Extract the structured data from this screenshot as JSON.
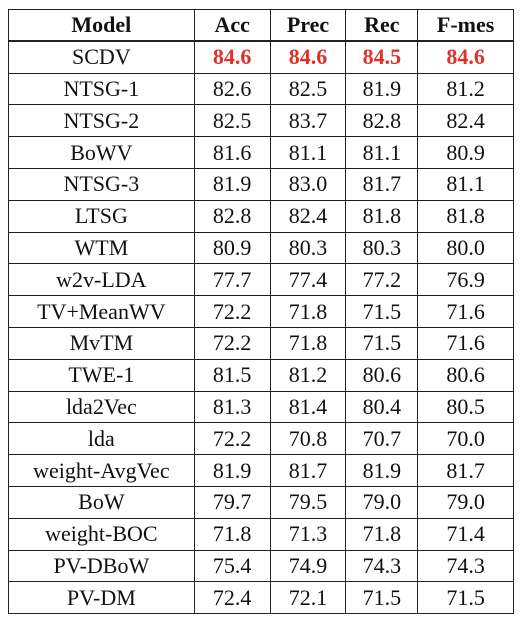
{
  "table": {
    "headers": [
      "Model",
      "Acc",
      "Prec",
      "Rec",
      "F-mes"
    ],
    "rows": [
      {
        "model": "SCDV",
        "values": [
          "84.6",
          "84.6",
          "84.5",
          "84.6"
        ],
        "highlight": true
      },
      {
        "model": "NTSG-1",
        "values": [
          "82.6",
          "82.5",
          "81.9",
          "81.2"
        ]
      },
      {
        "model": "NTSG-2",
        "values": [
          "82.5",
          "83.7",
          "82.8",
          "82.4"
        ]
      },
      {
        "model": "BoWV",
        "values": [
          "81.6",
          "81.1",
          "81.1",
          "80.9"
        ]
      },
      {
        "model": "NTSG-3",
        "values": [
          "81.9",
          "83.0",
          "81.7",
          "81.1"
        ]
      },
      {
        "model": "LTSG",
        "values": [
          "82.8",
          "82.4",
          "81.8",
          "81.8"
        ]
      },
      {
        "model": "WTM",
        "values": [
          "80.9",
          "80.3",
          "80.3",
          "80.0"
        ]
      },
      {
        "model": "w2v-LDA",
        "values": [
          "77.7",
          "77.4",
          "77.2",
          "76.9"
        ]
      },
      {
        "model": "TV+MeanWV",
        "values": [
          "72.2",
          "71.8",
          "71.5",
          "71.6"
        ]
      },
      {
        "model": "MvTM",
        "values": [
          "72.2",
          "71.8",
          "71.5",
          "71.6"
        ]
      },
      {
        "model": "TWE-1",
        "values": [
          "81.5",
          "81.2",
          "80.6",
          "80.6"
        ]
      },
      {
        "model": "lda2Vec",
        "values": [
          "81.3",
          "81.4",
          "80.4",
          "80.5"
        ]
      },
      {
        "model": "lda",
        "values": [
          "72.2",
          "70.8",
          "70.7",
          "70.0"
        ]
      },
      {
        "model": "weight-AvgVec",
        "values": [
          "81.9",
          "81.7",
          "81.9",
          "81.7"
        ]
      },
      {
        "model": "BoW",
        "values": [
          "79.7",
          "79.5",
          "79.0",
          "79.0"
        ]
      },
      {
        "model": "weight-BOC",
        "values": [
          "71.8",
          "71.3",
          "71.8",
          "71.4"
        ]
      },
      {
        "model": "PV-DBoW",
        "values": [
          "75.4",
          "74.9",
          "74.3",
          "74.3"
        ]
      },
      {
        "model": "PV-DM",
        "values": [
          "72.4",
          "72.1",
          "71.5",
          "71.5"
        ]
      }
    ]
  },
  "colors": {
    "highlight": "#e0302a",
    "text": "#111111",
    "border": "#222222"
  }
}
